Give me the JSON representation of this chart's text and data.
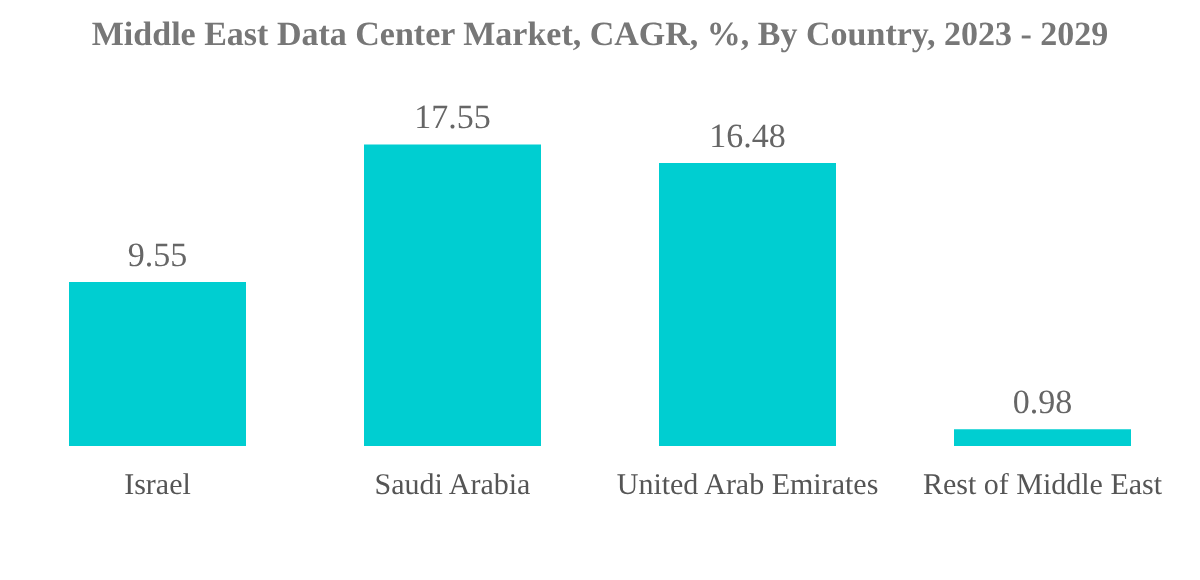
{
  "chart_data": {
    "type": "bar",
    "title": "Middle East Data Center Market, CAGR, %, By Country, 2023 - 2029",
    "categories": [
      "Israel",
      "Saudi Arabia",
      "United Arab Emirates",
      "Rest of Middle East"
    ],
    "values": [
      9.55,
      17.55,
      16.48,
      0.98
    ],
    "color": "#00ced1",
    "data_labels": true
  }
}
